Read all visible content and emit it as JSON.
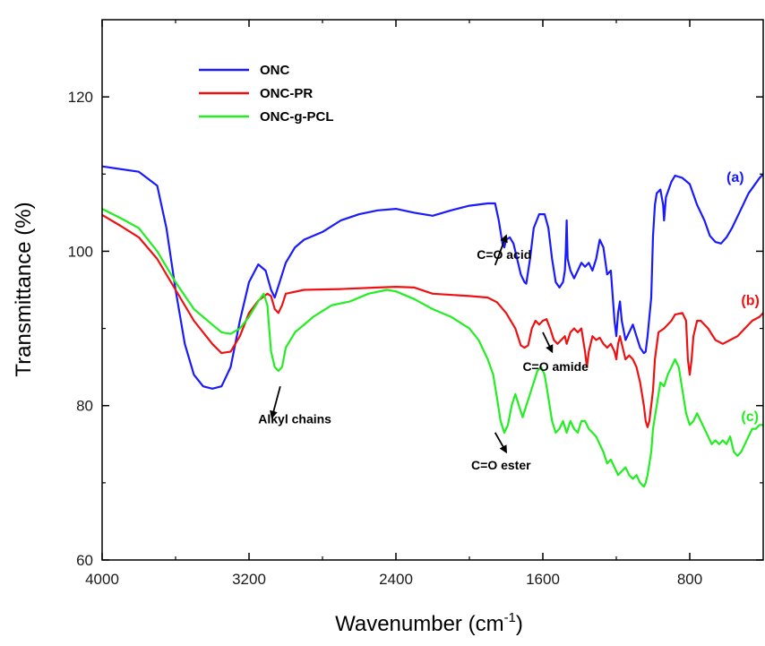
{
  "chart_data": {
    "type": "line",
    "xlabel": "Wavenumber (cm",
    "xlabel_sup": "-1",
    "xlabel_tail": ")",
    "ylabel": "Transmittance (%)",
    "xlim": [
      4000,
      400
    ],
    "ylim": [
      60,
      130
    ],
    "x_ticks": [
      4000,
      3200,
      2400,
      1600,
      800
    ],
    "y_ticks": [
      60,
      80,
      100,
      120
    ],
    "grid": false,
    "legend_position": "top-left",
    "series": [
      {
        "name": "ONC",
        "color": "#1a1aff",
        "tag": "(a)",
        "tag_x": 600,
        "tag_y": 109,
        "points": [
          [
            4000,
            111
          ],
          [
            3800,
            110.3
          ],
          [
            3700,
            108.5
          ],
          [
            3650,
            103
          ],
          [
            3600,
            95
          ],
          [
            3550,
            88
          ],
          [
            3500,
            84
          ],
          [
            3450,
            82.5
          ],
          [
            3400,
            82.2
          ],
          [
            3350,
            82.5
          ],
          [
            3300,
            85
          ],
          [
            3250,
            91
          ],
          [
            3200,
            96
          ],
          [
            3150,
            98.3
          ],
          [
            3110,
            97.5
          ],
          [
            3080,
            95
          ],
          [
            3060,
            94
          ],
          [
            3040,
            95.5
          ],
          [
            3000,
            98.5
          ],
          [
            2950,
            100.5
          ],
          [
            2900,
            101.5
          ],
          [
            2800,
            102.5
          ],
          [
            2700,
            104
          ],
          [
            2600,
            104.8
          ],
          [
            2500,
            105.3
          ],
          [
            2400,
            105.5
          ],
          [
            2300,
            105
          ],
          [
            2200,
            104.6
          ],
          [
            2100,
            105.3
          ],
          [
            2000,
            105.9
          ],
          [
            1900,
            106.2
          ],
          [
            1860,
            106.2
          ],
          [
            1840,
            104
          ],
          [
            1820,
            101
          ],
          [
            1810,
            100.5
          ],
          [
            1800,
            101.5
          ],
          [
            1780,
            101.8
          ],
          [
            1760,
            101
          ],
          [
            1740,
            99
          ],
          [
            1720,
            97
          ],
          [
            1700,
            96
          ],
          [
            1690,
            95.8
          ],
          [
            1670,
            99
          ],
          [
            1650,
            103
          ],
          [
            1620,
            104.8
          ],
          [
            1590,
            104.8
          ],
          [
            1570,
            103
          ],
          [
            1550,
            99
          ],
          [
            1530,
            96
          ],
          [
            1510,
            95.3
          ],
          [
            1490,
            96
          ],
          [
            1480,
            97.5
          ],
          [
            1475,
            100
          ],
          [
            1470,
            104
          ],
          [
            1465,
            99
          ],
          [
            1450,
            97.5
          ],
          [
            1430,
            96.5
          ],
          [
            1410,
            97.5
          ],
          [
            1390,
            98.5
          ],
          [
            1370,
            98
          ],
          [
            1350,
            98.5
          ],
          [
            1330,
            97.5
          ],
          [
            1310,
            99
          ],
          [
            1290,
            101.5
          ],
          [
            1270,
            100.5
          ],
          [
            1250,
            97
          ],
          [
            1230,
            97.5
          ],
          [
            1210,
            91
          ],
          [
            1200,
            89
          ],
          [
            1190,
            92
          ],
          [
            1180,
            93.5
          ],
          [
            1170,
            91
          ],
          [
            1150,
            88.5
          ],
          [
            1130,
            89.5
          ],
          [
            1110,
            90.5
          ],
          [
            1090,
            89
          ],
          [
            1070,
            87.5
          ],
          [
            1050,
            86.8
          ],
          [
            1040,
            87
          ],
          [
            1030,
            89
          ],
          [
            1010,
            94
          ],
          [
            1000,
            102
          ],
          [
            990,
            106
          ],
          [
            980,
            107.5
          ],
          [
            960,
            108
          ],
          [
            945,
            106
          ],
          [
            940,
            104
          ],
          [
            930,
            107
          ],
          [
            900,
            109
          ],
          [
            880,
            109.8
          ],
          [
            840,
            109.5
          ],
          [
            800,
            108.7
          ],
          [
            760,
            106
          ],
          [
            720,
            104
          ],
          [
            690,
            102
          ],
          [
            660,
            101.2
          ],
          [
            630,
            101
          ],
          [
            600,
            101.8
          ],
          [
            570,
            103
          ],
          [
            540,
            104.5
          ],
          [
            510,
            106
          ],
          [
            480,
            107.5
          ],
          [
            450,
            108.5
          ],
          [
            420,
            109.5
          ],
          [
            400,
            110
          ]
        ]
      },
      {
        "name": "ONC-PR",
        "color": "#ee1111",
        "tag": "(b)",
        "tag_x": 520,
        "tag_y": 93,
        "points": [
          [
            4000,
            104.7
          ],
          [
            3900,
            103.3
          ],
          [
            3800,
            101.8
          ],
          [
            3700,
            99
          ],
          [
            3600,
            95
          ],
          [
            3500,
            91
          ],
          [
            3400,
            88
          ],
          [
            3350,
            86.8
          ],
          [
            3300,
            87
          ],
          [
            3250,
            89
          ],
          [
            3200,
            92
          ],
          [
            3150,
            93.6
          ],
          [
            3100,
            94.5
          ],
          [
            3080,
            94.2
          ],
          [
            3060,
            92.5
          ],
          [
            3040,
            92
          ],
          [
            3020,
            93
          ],
          [
            3000,
            94.5
          ],
          [
            2900,
            95
          ],
          [
            2700,
            95.1
          ],
          [
            2500,
            95.3
          ],
          [
            2400,
            95.4
          ],
          [
            2300,
            95.3
          ],
          [
            2200,
            94.5
          ],
          [
            2000,
            94.2
          ],
          [
            1900,
            94
          ],
          [
            1850,
            93.4
          ],
          [
            1800,
            92
          ],
          [
            1750,
            90
          ],
          [
            1720,
            87.8
          ],
          [
            1700,
            87.5
          ],
          [
            1680,
            87.8
          ],
          [
            1660,
            90
          ],
          [
            1640,
            91
          ],
          [
            1620,
            90.5
          ],
          [
            1600,
            91
          ],
          [
            1580,
            91.2
          ],
          [
            1560,
            90
          ],
          [
            1540,
            88.5
          ],
          [
            1520,
            88
          ],
          [
            1500,
            88.5
          ],
          [
            1480,
            89
          ],
          [
            1470,
            88
          ],
          [
            1450,
            89.5
          ],
          [
            1430,
            90
          ],
          [
            1410,
            89.5
          ],
          [
            1390,
            90
          ],
          [
            1370,
            87
          ],
          [
            1360,
            85
          ],
          [
            1350,
            87
          ],
          [
            1330,
            89
          ],
          [
            1310,
            88.5
          ],
          [
            1290,
            88.8
          ],
          [
            1270,
            88
          ],
          [
            1250,
            87.5
          ],
          [
            1230,
            88
          ],
          [
            1210,
            87
          ],
          [
            1200,
            86
          ],
          [
            1190,
            88
          ],
          [
            1180,
            89
          ],
          [
            1170,
            88
          ],
          [
            1150,
            86
          ],
          [
            1130,
            86.5
          ],
          [
            1110,
            86
          ],
          [
            1090,
            85
          ],
          [
            1070,
            83
          ],
          [
            1050,
            80
          ],
          [
            1040,
            78
          ],
          [
            1030,
            77.2
          ],
          [
            1020,
            78
          ],
          [
            1000,
            82
          ],
          [
            990,
            86
          ],
          [
            970,
            89.5
          ],
          [
            940,
            90
          ],
          [
            900,
            91
          ],
          [
            880,
            91.8
          ],
          [
            840,
            92
          ],
          [
            820,
            91
          ],
          [
            810,
            86
          ],
          [
            800,
            84
          ],
          [
            790,
            86
          ],
          [
            780,
            89
          ],
          [
            760,
            91
          ],
          [
            740,
            91
          ],
          [
            700,
            90
          ],
          [
            660,
            88.5
          ],
          [
            620,
            88
          ],
          [
            580,
            88.5
          ],
          [
            540,
            89
          ],
          [
            500,
            90
          ],
          [
            460,
            91
          ],
          [
            420,
            91.5
          ],
          [
            400,
            92
          ]
        ]
      },
      {
        "name": "ONC-g-PCL",
        "color": "#22ee22",
        "tag": "(c)",
        "tag_x": 520,
        "tag_y": 78,
        "points": [
          [
            4000,
            105.5
          ],
          [
            3900,
            104.3
          ],
          [
            3800,
            103
          ],
          [
            3700,
            100
          ],
          [
            3600,
            96
          ],
          [
            3500,
            92.5
          ],
          [
            3400,
            90.5
          ],
          [
            3350,
            89.5
          ],
          [
            3300,
            89.3
          ],
          [
            3250,
            90
          ],
          [
            3200,
            91.5
          ],
          [
            3150,
            93.5
          ],
          [
            3120,
            94.5
          ],
          [
            3100,
            93
          ],
          [
            3090,
            90
          ],
          [
            3080,
            87
          ],
          [
            3060,
            85
          ],
          [
            3040,
            84.5
          ],
          [
            3020,
            85
          ],
          [
            3000,
            87.5
          ],
          [
            2950,
            89.5
          ],
          [
            2850,
            91.5
          ],
          [
            2750,
            93
          ],
          [
            2650,
            93.5
          ],
          [
            2550,
            94.5
          ],
          [
            2450,
            95
          ],
          [
            2400,
            94.8
          ],
          [
            2300,
            93.8
          ],
          [
            2200,
            92.5
          ],
          [
            2100,
            91.5
          ],
          [
            2000,
            90
          ],
          [
            1950,
            88.5
          ],
          [
            1900,
            86
          ],
          [
            1870,
            84
          ],
          [
            1850,
            81
          ],
          [
            1830,
            78
          ],
          [
            1810,
            76.5
          ],
          [
            1790,
            77.5
          ],
          [
            1770,
            80
          ],
          [
            1750,
            81.5
          ],
          [
            1730,
            80
          ],
          [
            1710,
            78.5
          ],
          [
            1690,
            80
          ],
          [
            1670,
            81.5
          ],
          [
            1650,
            83
          ],
          [
            1630,
            84.5
          ],
          [
            1610,
            85
          ],
          [
            1590,
            84
          ],
          [
            1570,
            81
          ],
          [
            1550,
            78
          ],
          [
            1530,
            76.5
          ],
          [
            1510,
            77
          ],
          [
            1490,
            78
          ],
          [
            1470,
            76.5
          ],
          [
            1450,
            78
          ],
          [
            1430,
            77
          ],
          [
            1410,
            76.5
          ],
          [
            1390,
            78
          ],
          [
            1370,
            78
          ],
          [
            1350,
            77
          ],
          [
            1330,
            76.5
          ],
          [
            1310,
            76
          ],
          [
            1290,
            75
          ],
          [
            1270,
            74
          ],
          [
            1250,
            72.5
          ],
          [
            1230,
            73
          ],
          [
            1210,
            72
          ],
          [
            1190,
            71
          ],
          [
            1170,
            71.5
          ],
          [
            1150,
            72
          ],
          [
            1130,
            71
          ],
          [
            1110,
            70.5
          ],
          [
            1090,
            71
          ],
          [
            1070,
            70
          ],
          [
            1050,
            69.5
          ],
          [
            1040,
            70
          ],
          [
            1030,
            71
          ],
          [
            1010,
            74
          ],
          [
            1000,
            77
          ],
          [
            980,
            80
          ],
          [
            960,
            83
          ],
          [
            940,
            82.5
          ],
          [
            920,
            84
          ],
          [
            900,
            85
          ],
          [
            880,
            86
          ],
          [
            860,
            85
          ],
          [
            840,
            82
          ],
          [
            820,
            79
          ],
          [
            800,
            77.5
          ],
          [
            780,
            78
          ],
          [
            760,
            79
          ],
          [
            740,
            78
          ],
          [
            720,
            77
          ],
          [
            700,
            76
          ],
          [
            680,
            75
          ],
          [
            660,
            75.5
          ],
          [
            640,
            75
          ],
          [
            620,
            75.5
          ],
          [
            600,
            75
          ],
          [
            580,
            76
          ],
          [
            560,
            74
          ],
          [
            540,
            73.5
          ],
          [
            520,
            74
          ],
          [
            500,
            75
          ],
          [
            480,
            76
          ],
          [
            460,
            77
          ],
          [
            440,
            77
          ],
          [
            420,
            77.5
          ],
          [
            400,
            77.5
          ]
        ]
      }
    ],
    "annotations": [
      {
        "text": "C=O acid",
        "tx": 1960,
        "ty": 99,
        "ax1": 1860,
        "ay1": 98.2,
        "ax2": 1800,
        "ay2": 102
      },
      {
        "text": "C=O amide",
        "tx": 1710,
        "ty": 84.5,
        "ax1": 1600,
        "ay1": 89.5,
        "ax2": 1550,
        "ay2": 87
      },
      {
        "text": "Alkyl chains",
        "tx": 3150,
        "ty": 77.7,
        "ax1": 3030,
        "ay1": 82.5,
        "ax2": 3075,
        "ay2": 78.5
      },
      {
        "text": "C=O ester",
        "tx": 1990,
        "ty": 71.7,
        "ax1": 1860,
        "ay1": 76.5,
        "ax2": 1800,
        "ay2": 74
      }
    ]
  }
}
